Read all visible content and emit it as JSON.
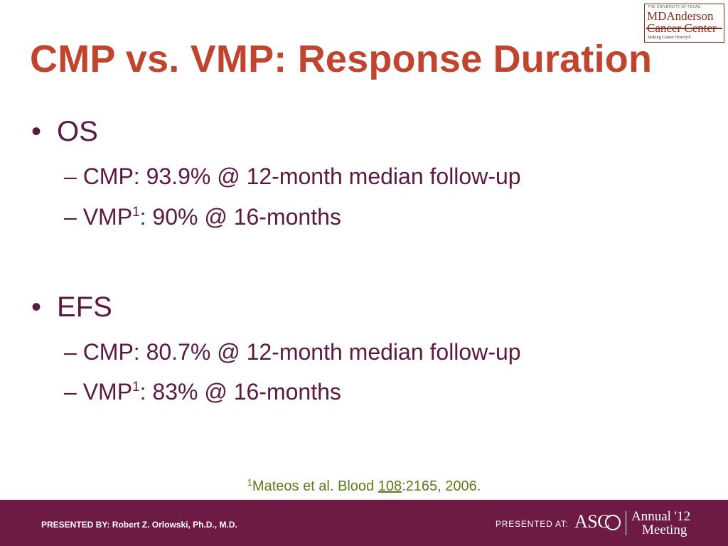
{
  "slide": {
    "title": "CMP vs. VMP: Response Duration"
  },
  "logo": {
    "small_text": "THE UNIVERSITY OF TEXAS",
    "line1": "MDAnderson",
    "line2": "Cancer Center",
    "tagline": "Making Cancer History®"
  },
  "sections": [
    {
      "bullet": "OS",
      "items": [
        {
          "prefix": "– CMP: 93.9% @ 12-month median follow-up",
          "sup": "",
          "suffix": ""
        },
        {
          "prefix": "– VMP",
          "sup": "1",
          "suffix": ": 90% @ 16-months"
        }
      ]
    },
    {
      "bullet": "EFS",
      "items": [
        {
          "prefix": "– CMP: 80.7% @ 12-month median follow-up",
          "sup": "",
          "suffix": ""
        },
        {
          "prefix": "– VMP",
          "sup": "1",
          "suffix": ": 83% @ 16-months"
        }
      ]
    }
  ],
  "footnote": {
    "sup": "1",
    "text_before": "Mateos et al. Blood ",
    "underlined": "108",
    "text_after": ":2165, 2006."
  },
  "footer": {
    "presented_by": "PRESENTED BY: Robert Z. Orlowski, Ph.D., M.D.",
    "presented_at": "PRESENTED AT:",
    "asco": "ASC",
    "annual": "Annual '12",
    "meeting": "Meeting",
    "background_color": "#6d1a45"
  },
  "colors": {
    "title": "#c0442e",
    "body_text": "#5b1a40",
    "footnote": "#5e7a1a"
  }
}
